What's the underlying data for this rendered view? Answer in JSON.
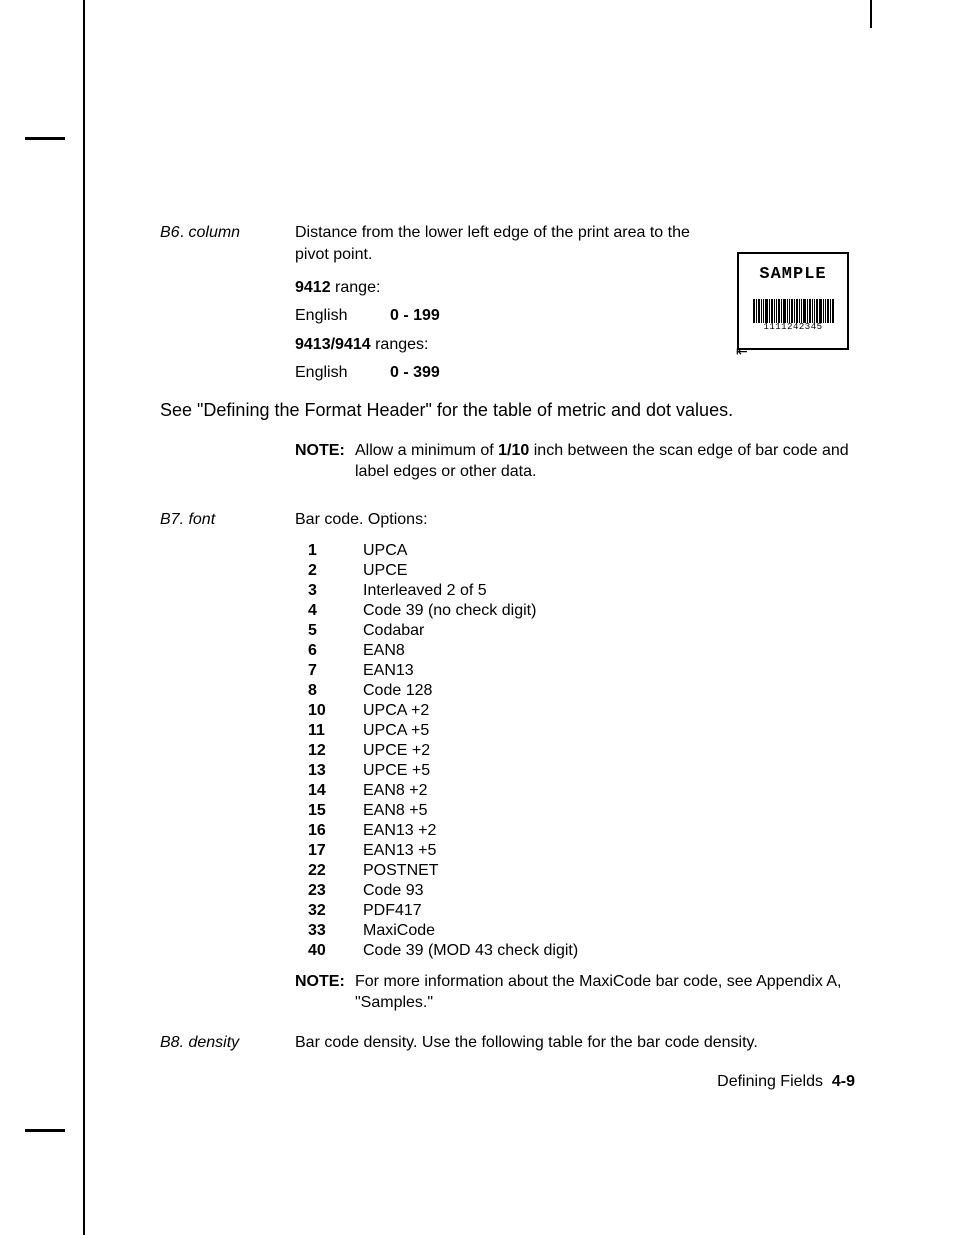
{
  "b6": {
    "label_prefix": "B6",
    "label_dot": ".",
    "label_suffix": "column",
    "description": "Distance from the lower left edge of the print area to the pivot point.",
    "range1": {
      "model": "9412",
      "suffix": "range:",
      "unit": "English",
      "value": "0 - 199"
    },
    "range2": {
      "model": "9413/9414",
      "suffix": "ranges:",
      "unit": "English",
      "value": "0 - 399"
    },
    "see_reference": "See \"Defining the Format Header\" for the table of metric and dot values.",
    "note": {
      "label": "NOTE:",
      "part1": "Allow a minimum of ",
      "bold": "1/10",
      "part2": " inch between the scan edge of bar code and label edges or other data."
    }
  },
  "sample": {
    "title": "SAMPLE",
    "barcode_number": "1111242345",
    "barcode_bars": [
      2,
      1,
      2,
      1,
      1,
      3,
      1,
      2,
      1,
      1,
      2,
      1,
      3,
      1,
      1,
      2,
      1,
      2,
      1,
      1,
      3,
      1,
      2,
      1,
      1,
      2,
      3,
      1,
      1,
      2,
      1,
      2
    ]
  },
  "b7": {
    "label": "B7. font",
    "description": "Bar code.  Options:",
    "options": [
      {
        "num": "1",
        "name": "UPCA"
      },
      {
        "num": "2",
        "name": "UPCE"
      },
      {
        "num": "3",
        "name": "Interleaved 2 of 5"
      },
      {
        "num": "4",
        "name": "Code 39 (no check digit)"
      },
      {
        "num": "5",
        "name": "Codabar"
      },
      {
        "num": "6",
        "name": "EAN8"
      },
      {
        "num": "7",
        "name": "EAN13"
      },
      {
        "num": "8",
        "name": "Code 128"
      },
      {
        "num": "10",
        "name": "UPCA +2"
      },
      {
        "num": "11",
        "name": "UPCA +5"
      },
      {
        "num": "12",
        "name": "UPCE +2"
      },
      {
        "num": "13",
        "name": "UPCE +5"
      },
      {
        "num": "14",
        "name": "EAN8 +2"
      },
      {
        "num": "15",
        "name": "EAN8 +5"
      },
      {
        "num": "16",
        "name": "EAN13 +2"
      },
      {
        "num": "17",
        "name": "EAN13 +5"
      },
      {
        "num": "22",
        "name": "POSTNET"
      },
      {
        "num": "23",
        "name": "Code 93"
      },
      {
        "num": "32",
        "name": "PDF417"
      },
      {
        "num": "33",
        "name": "MaxiCode"
      },
      {
        "num": "40",
        "name": "Code 39 (MOD 43 check digit)"
      }
    ],
    "note": {
      "label": "NOTE:",
      "body": "For more information about the MaxiCode bar code, see Appendix A, \"Samples.\""
    }
  },
  "b8": {
    "label": "B8. density",
    "description": "Bar code density.  Use the following table for the bar code density."
  },
  "footer": {
    "section": "Defining Fields",
    "page": "4-9"
  }
}
